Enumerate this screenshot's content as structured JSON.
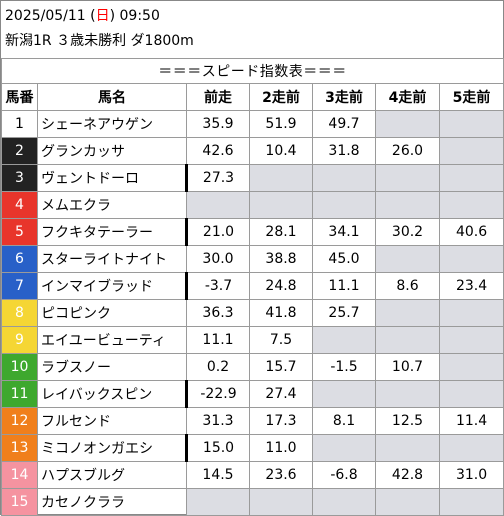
{
  "header": {
    "date_pre": "2025/05/11 (",
    "weekday": "日",
    "date_post": ") 09:50",
    "race": "新潟1R ３歳未勝利 ダ1800m"
  },
  "banner": "＝＝＝スピード指数表＝＝＝",
  "columns": [
    "馬番",
    "馬名",
    "前走",
    "2走前",
    "3走前",
    "4走前",
    "5走前"
  ],
  "colors": {
    "white": "#ffffff",
    "black": "#222222",
    "red": "#e8352b",
    "blue": "#2860c8",
    "yellow": "#f5d634",
    "green": "#3ea82e",
    "orange": "#f07f1c",
    "pink": "#f593a0",
    "empty_cell": "#dcdde3"
  },
  "rows": [
    {
      "num": "1",
      "name": "シェーネアウゲン",
      "color": "#ffffff",
      "light": false,
      "mark": false,
      "vals": [
        "35.9",
        "51.9",
        "49.7",
        "",
        ""
      ]
    },
    {
      "num": "2",
      "name": "グランカッサ",
      "color": "#222222",
      "light": true,
      "mark": false,
      "vals": [
        "42.6",
        "10.4",
        "31.8",
        "26.0",
        ""
      ]
    },
    {
      "num": "3",
      "name": "ヴェントドーロ",
      "color": "#222222",
      "light": true,
      "mark": true,
      "vals": [
        "27.3",
        "",
        "",
        "",
        ""
      ]
    },
    {
      "num": "4",
      "name": "メムエクラ",
      "color": "#e8352b",
      "light": true,
      "mark": false,
      "vals": [
        "",
        "",
        "",
        "",
        ""
      ]
    },
    {
      "num": "5",
      "name": "フクキタテーラー",
      "color": "#e8352b",
      "light": true,
      "mark": true,
      "vals": [
        "21.0",
        "28.1",
        "34.1",
        "30.2",
        "40.6"
      ]
    },
    {
      "num": "6",
      "name": "スターライトナイト",
      "color": "#2860c8",
      "light": true,
      "mark": false,
      "vals": [
        "30.0",
        "38.8",
        "45.0",
        "",
        ""
      ]
    },
    {
      "num": "7",
      "name": "インマイブラッド",
      "color": "#2860c8",
      "light": true,
      "mark": true,
      "vals": [
        "-3.7",
        "24.8",
        "11.1",
        "8.6",
        "23.4"
      ]
    },
    {
      "num": "8",
      "name": "ピコピンク",
      "color": "#f5d634",
      "light": true,
      "mark": false,
      "vals": [
        "36.3",
        "41.8",
        "25.7",
        "",
        ""
      ]
    },
    {
      "num": "9",
      "name": "エイユービューティ",
      "color": "#f5d634",
      "light": true,
      "mark": false,
      "vals": [
        "11.1",
        "7.5",
        "",
        "",
        ""
      ]
    },
    {
      "num": "10",
      "name": "ラブスノー",
      "color": "#3ea82e",
      "light": true,
      "mark": false,
      "vals": [
        "0.2",
        "15.7",
        "-1.5",
        "10.7",
        ""
      ]
    },
    {
      "num": "11",
      "name": "レイバックスピン",
      "color": "#3ea82e",
      "light": true,
      "mark": true,
      "vals": [
        "-22.9",
        "27.4",
        "",
        "",
        ""
      ]
    },
    {
      "num": "12",
      "name": "フルセンド",
      "color": "#f07f1c",
      "light": true,
      "mark": false,
      "vals": [
        "31.3",
        "17.3",
        "8.1",
        "12.5",
        "11.4"
      ]
    },
    {
      "num": "13",
      "name": "ミコノオンガエシ",
      "color": "#f07f1c",
      "light": true,
      "mark": true,
      "vals": [
        "15.0",
        "11.0",
        "",
        "",
        ""
      ]
    },
    {
      "num": "14",
      "name": "ハプスブルグ",
      "color": "#f593a0",
      "light": true,
      "mark": false,
      "vals": [
        "14.5",
        "23.6",
        "-6.8",
        "42.8",
        "31.0"
      ]
    },
    {
      "num": "15",
      "name": "カセノクララ",
      "color": "#f593a0",
      "light": true,
      "mark": false,
      "vals": [
        "",
        "",
        "",
        "",
        ""
      ]
    }
  ]
}
